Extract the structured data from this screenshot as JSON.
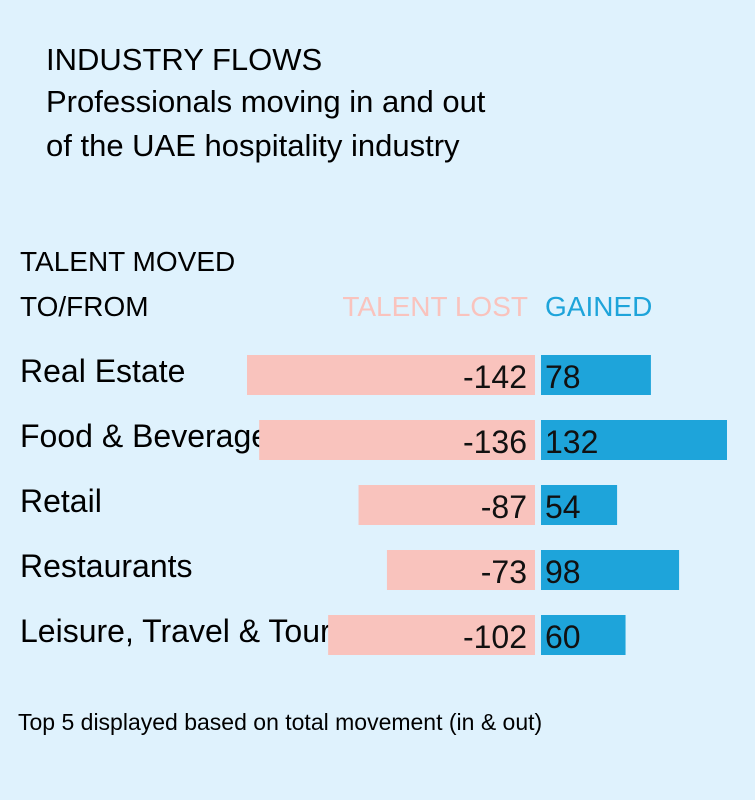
{
  "chart_data": {
    "type": "bar",
    "title": "INDUSTRY FLOWS",
    "subtitle_lines": [
      "Professionals moving in and out",
      "of the UAE hospitality industry"
    ],
    "category_header_lines": [
      "TALENT MOVED",
      "TO/FROM"
    ],
    "categories": [
      "Real Estate",
      "Food & Beverages",
      "Retail",
      "Restaurants",
      "Leisure, Travel & Tourism"
    ],
    "series": [
      {
        "name": "TALENT LOST",
        "values": [
          -142,
          -136,
          -87,
          -73,
          -102
        ],
        "color": "#f9c3bd"
      },
      {
        "name": "GAINED",
        "values": [
          78,
          132,
          54,
          98,
          60
        ],
        "color": "#1ea4da"
      }
    ],
    "value_labels": {
      "lost": [
        "-142",
        "-136",
        "-87",
        "-73",
        "-102"
      ],
      "gained": [
        "78",
        "132",
        "54",
        "98",
        "60"
      ]
    },
    "footnote": "Top 5 displayed based on total movement (in & out)",
    "colors": {
      "background": "#dff2fd",
      "lost": "#f9c3bd",
      "gained": "#1ea4da",
      "lost_label": "#f9c3bd",
      "gained_label": "#1ea4da",
      "text": "#111111"
    }
  }
}
